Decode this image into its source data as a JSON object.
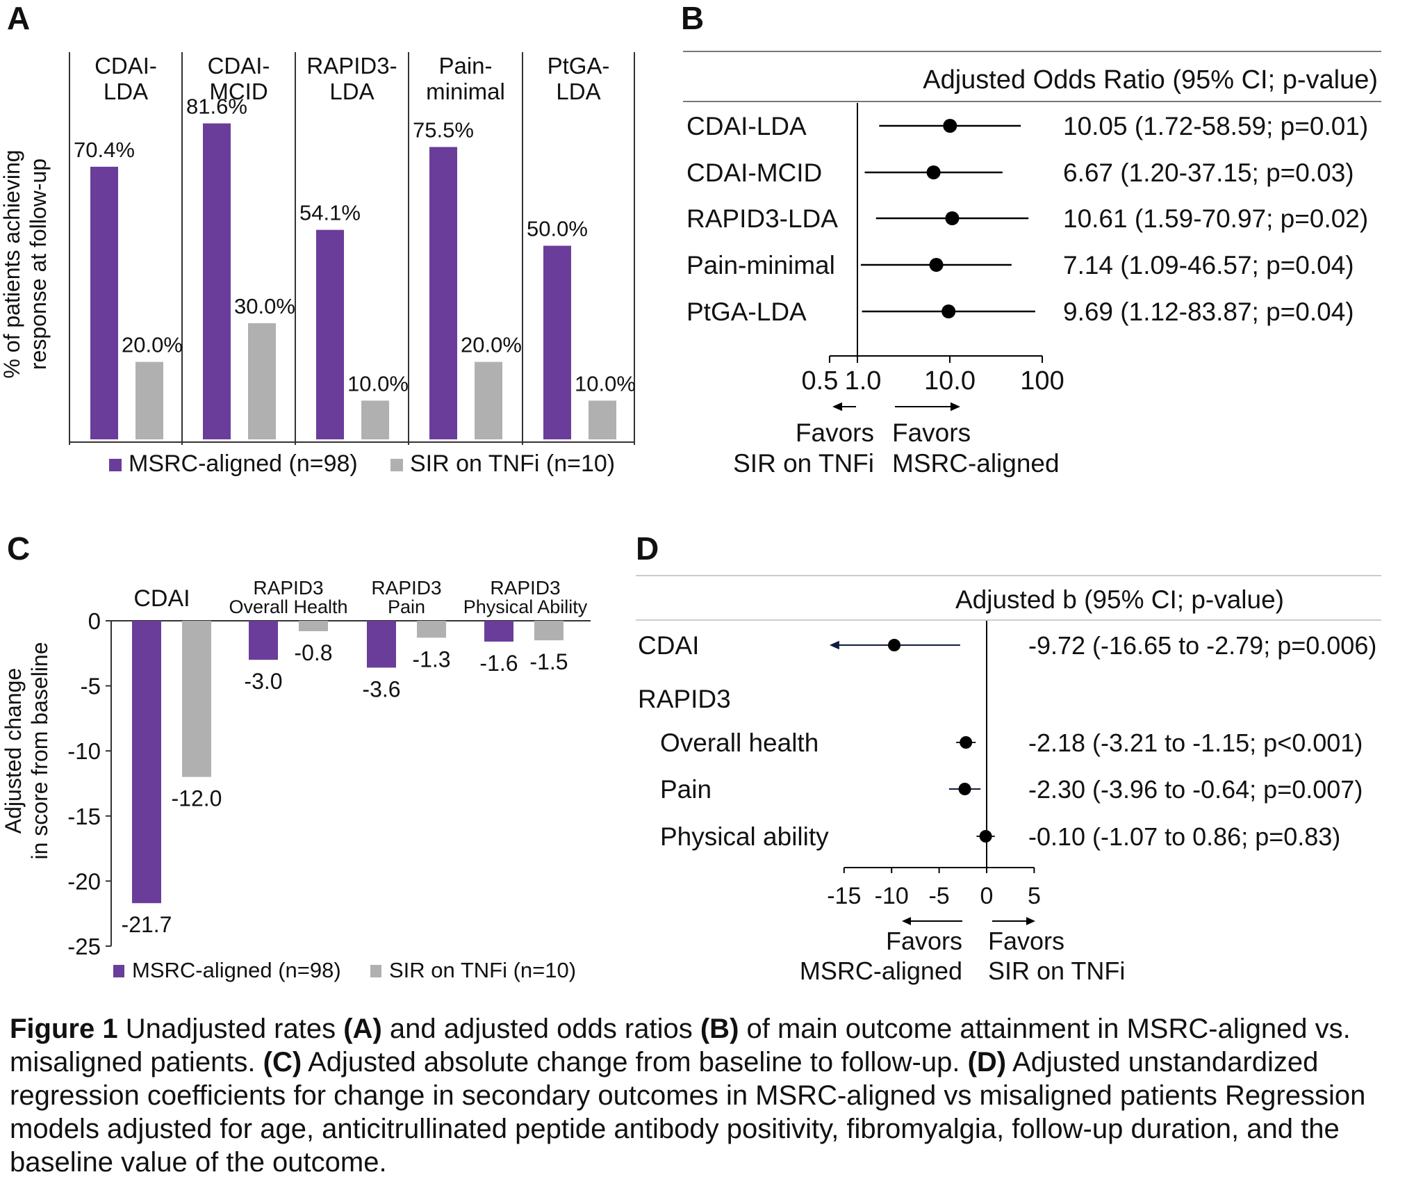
{
  "colors": {
    "msrc": "#6A3D9A",
    "sir": "#B0B0B0",
    "axis": "#333333",
    "forest": "#000000",
    "ci_d": "#0F1C3F"
  },
  "panels": {
    "A": "A",
    "B": "B",
    "C": "C",
    "D": "D"
  },
  "legend": {
    "msrc": "MSRC-aligned (n=98)",
    "sir": "SIR on TNFi (n=10)"
  },
  "chart_data": [
    {
      "panel": "A",
      "type": "bar",
      "ylabel": [
        "% of patients achieving",
        "response at follow-up"
      ],
      "categories": [
        [
          "CDAI-",
          "LDA"
        ],
        [
          "CDAI-",
          "MCID"
        ],
        [
          "RAPID3-",
          "LDA"
        ],
        [
          "Pain-",
          "minimal"
        ],
        [
          "PtGA-",
          "LDA"
        ]
      ],
      "series": [
        {
          "name": "MSRC-aligned (n=98)",
          "values": [
            70.4,
            81.6,
            54.1,
            75.5,
            50.0
          ],
          "labels": [
            "70.4%",
            "81.6%",
            "54.1%",
            "75.5%",
            "50.0%"
          ]
        },
        {
          "name": "SIR on TNFi (n=10)",
          "values": [
            20.0,
            30.0,
            10.0,
            20.0,
            10.0
          ],
          "labels": [
            "20.0%",
            "30.0%",
            "10.0%",
            "20.0%",
            "10.0%"
          ]
        }
      ],
      "ylim": [
        0,
        100
      ],
      "legend": "bottom"
    },
    {
      "panel": "B",
      "type": "scatter",
      "title": "Adjusted Odds Ratio (95% CI; p-value)",
      "scale": "log",
      "xlim": [
        0.5,
        100
      ],
      "ticks": [
        0.5,
        1.0,
        10.0,
        100
      ],
      "tick_labels": [
        "0.5",
        "1.0",
        "10.0",
        "100"
      ],
      "rows": [
        {
          "label": "CDAI-LDA",
          "est": 10.05,
          "lo": 1.72,
          "hi": 58.59,
          "text": "10.05 (1.72-58.59; p=0.01)"
        },
        {
          "label": "CDAI-MCID",
          "est": 6.67,
          "lo": 1.2,
          "hi": 37.15,
          "text": "6.67 (1.20-37.15; p=0.03)"
        },
        {
          "label": "RAPID3-LDA",
          "est": 10.61,
          "lo": 1.59,
          "hi": 70.97,
          "text": "10.61 (1.59-70.97; p=0.02)"
        },
        {
          "label": "Pain-minimal",
          "est": 7.14,
          "lo": 1.09,
          "hi": 46.57,
          "text": "7.14 (1.09-46.57; p=0.04)"
        },
        {
          "label": "PtGA-LDA",
          "est": 9.69,
          "lo": 1.12,
          "hi": 83.87,
          "text": "9.69 (1.12-83.87; p=0.04)"
        }
      ],
      "favors_left": [
        "Favors",
        "SIR on TNFi"
      ],
      "favors_right": [
        "Favors",
        "MSRC-aligned"
      ]
    },
    {
      "panel": "C",
      "type": "bar",
      "ylabel": [
        "Adjusted change",
        "in score from baseline"
      ],
      "categories": [
        [
          "CDAI"
        ],
        [
          "RAPID3",
          "Overall Health"
        ],
        [
          "RAPID3",
          "Pain"
        ],
        [
          "RAPID3",
          "Physical Ability"
        ]
      ],
      "series": [
        {
          "name": "MSRC-aligned (n=98)",
          "values": [
            -21.7,
            -3.0,
            -3.6,
            -1.6
          ],
          "labels": [
            "-21.7",
            "-3.0",
            "-3.6",
            "-1.6"
          ]
        },
        {
          "name": "SIR on TNFi (n=10)",
          "values": [
            -12.0,
            -0.8,
            -1.3,
            -1.5
          ],
          "labels": [
            "-12.0",
            "-0.8",
            "-1.3",
            "-1.5"
          ]
        }
      ],
      "ylim": [
        -25,
        0
      ],
      "yticks": [
        0,
        -5,
        -10,
        -15,
        -20,
        -25
      ],
      "legend": "bottom"
    },
    {
      "panel": "D",
      "type": "scatter",
      "title": "Adjusted b (95% CI; p-value)",
      "xlim": [
        -15,
        5
      ],
      "ticks": [
        -15,
        -10,
        -5,
        0,
        5
      ],
      "tick_labels": [
        "-15",
        "-10",
        "-5",
        "0",
        "5"
      ],
      "group_label": "RAPID3",
      "rows": [
        {
          "label": "CDAI",
          "est": -9.72,
          "lo": -16.65,
          "hi": -2.79,
          "text": "-9.72 (-16.65 to -2.79; p=0.006)",
          "indent": false
        },
        {
          "label": "Overall health",
          "est": -2.18,
          "lo": -3.21,
          "hi": -1.15,
          "text": "-2.18 (-3.21 to -1.15; p<0.001)",
          "indent": true
        },
        {
          "label": "Pain",
          "est": -2.3,
          "lo": -3.96,
          "hi": -0.64,
          "text": "-2.30 (-3.96 to -0.64; p=0.007)",
          "indent": true
        },
        {
          "label": "Physical ability",
          "est": -0.1,
          "lo": -1.07,
          "hi": 0.86,
          "text": "-0.10 (-1.07 to 0.86; p=0.83)",
          "indent": true
        }
      ],
      "favors_left": [
        "Favors",
        "MSRC-aligned"
      ],
      "favors_right": [
        "Favors",
        "SIR on TNFi"
      ]
    }
  ],
  "caption": {
    "label": "Figure 1",
    "t1": " Unadjusted rates ",
    "a": "(A)",
    "t2": " and adjusted odds ratios ",
    "b": "(B)",
    "t3": " of main outcome attainment in MSRC-aligned vs. misaligned patients. ",
    "c": "(C)",
    "t4": " Adjusted absolute change from baseline to follow-up. ",
    "d": "(D)",
    "t5": " Adjusted unstandardized regression coefficients for change in secondary outcomes in MSRC-aligned vs misaligned patients Regression models adjusted for age, anticitrullinated peptide antibody positivity, fibromyalgia, follow-up duration, and the baseline value of the outcome."
  }
}
